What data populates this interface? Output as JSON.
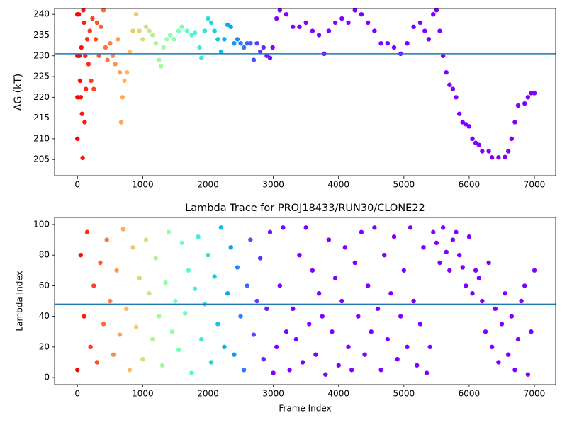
{
  "chart_data": [
    {
      "type": "scatter",
      "ylabel": "ΔG (kT)",
      "colormap": "rainbow",
      "color_range": [
        3000,
        0
      ],
      "xlim": [
        -350,
        7325
      ],
      "ylim": [
        201.1,
        241.4
      ],
      "xticks": [
        0,
        1000,
        2000,
        3000,
        4000,
        5000,
        6000,
        7000
      ],
      "yticks": [
        205,
        210,
        215,
        220,
        225,
        230,
        235,
        240
      ],
      "hline": 230.5,
      "hline_color": "#1f77b4",
      "x": [
        0,
        0,
        0,
        0,
        20,
        30,
        40,
        50,
        60,
        70,
        80,
        90,
        100,
        110,
        120,
        130,
        150,
        170,
        190,
        210,
        230,
        250,
        280,
        300,
        330,
        360,
        400,
        430,
        460,
        500,
        540,
        580,
        620,
        650,
        670,
        690,
        720,
        760,
        800,
        850,
        900,
        950,
        1000,
        1050,
        1100,
        1150,
        1200,
        1250,
        1280,
        1320,
        1370,
        1420,
        1480,
        1550,
        1600,
        1680,
        1750,
        1800,
        1870,
        1900,
        1950,
        2000,
        2050,
        2100,
        2150,
        2200,
        2250,
        2300,
        2350,
        2400,
        2450,
        2500,
        2550,
        2600,
        2650,
        2700,
        2750,
        2800,
        2850,
        2900,
        2950,
        2990,
        3050,
        3100,
        3200,
        3300,
        3400,
        3500,
        3600,
        3700,
        3780,
        3850,
        3950,
        4050,
        4150,
        4250,
        4350,
        4450,
        4550,
        4650,
        4750,
        4850,
        4950,
        5050,
        5150,
        5250,
        5320,
        5380,
        5450,
        5500,
        5550,
        5600,
        5650,
        5700,
        5750,
        5800,
        5850,
        5900,
        5950,
        6000,
        6050,
        6100,
        6150,
        6200,
        6300,
        6350,
        6450,
        6550,
        6600,
        6650,
        6700,
        6750,
        6850,
        6900,
        6950,
        7000
      ],
      "y": [
        240,
        230,
        220,
        210,
        240,
        230,
        224,
        220,
        232,
        216,
        205.4,
        241,
        238,
        214,
        230,
        222,
        234,
        228,
        236,
        224,
        239,
        222,
        234,
        238,
        230,
        237,
        241,
        232,
        229,
        233,
        230,
        228,
        234,
        226,
        214,
        220,
        224,
        226,
        231,
        236,
        240,
        236,
        234,
        237,
        236,
        235,
        233,
        229,
        227.5,
        232,
        234,
        235,
        234,
        236,
        237,
        236,
        235,
        235.5,
        232,
        229.5,
        236,
        239,
        238,
        236,
        234,
        231,
        234,
        237.5,
        237,
        233,
        234,
        233,
        232,
        233,
        233,
        229,
        233,
        231,
        232,
        230,
        229.5,
        232,
        239,
        241,
        240,
        237,
        237,
        238,
        236,
        235,
        230.5,
        236,
        238,
        239,
        238,
        241,
        240,
        238,
        236,
        233,
        233,
        232,
        230.5,
        233,
        237,
        238,
        236,
        234,
        240,
        241,
        236,
        230,
        226,
        223,
        222,
        220,
        216,
        214,
        213.5,
        213,
        210,
        209,
        208.5,
        207,
        207,
        205.5,
        205.5,
        205.6,
        207,
        210,
        214,
        218,
        218.5,
        220,
        221,
        221
      ]
    },
    {
      "type": "scatter",
      "title": "Lambda Trace for PROJ18433/RUN30/CLONE22",
      "xlabel": "Frame Index",
      "ylabel": "Lambda Index",
      "colormap": "rainbow",
      "color_range": [
        3000,
        0
      ],
      "xlim": [
        -350,
        7325
      ],
      "ylim": [
        -4.6,
        104.6
      ],
      "xticks": [
        0,
        1000,
        2000,
        3000,
        4000,
        5000,
        6000,
        7000
      ],
      "yticks": [
        0,
        20,
        40,
        60,
        80,
        100
      ],
      "hline": 48,
      "hline_color": "#1f77b4",
      "x": [
        0,
        50,
        100,
        150,
        200,
        250,
        300,
        350,
        400,
        450,
        500,
        550,
        600,
        650,
        700,
        750,
        800,
        850,
        900,
        950,
        1000,
        1050,
        1100,
        1150,
        1200,
        1250,
        1300,
        1350,
        1400,
        1450,
        1500,
        1550,
        1600,
        1650,
        1700,
        1750,
        1800,
        1850,
        1900,
        1950,
        2000,
        2050,
        2100,
        2150,
        2200,
        2250,
        2300,
        2350,
        2400,
        2450,
        2500,
        2550,
        2600,
        2650,
        2700,
        2750,
        2800,
        2850,
        2900,
        2950,
        3000,
        3050,
        3100,
        3150,
        3200,
        3250,
        3300,
        3350,
        3400,
        3450,
        3500,
        3550,
        3600,
        3650,
        3700,
        3750,
        3800,
        3850,
        3900,
        3950,
        4000,
        4050,
        4100,
        4150,
        4200,
        4250,
        4300,
        4350,
        4400,
        4450,
        4500,
        4550,
        4600,
        4650,
        4700,
        4750,
        4800,
        4850,
        4900,
        4950,
        5000,
        5050,
        5100,
        5150,
        5200,
        5250,
        5300,
        5350,
        5400,
        5450,
        5500,
        5550,
        5600,
        5650,
        5700,
        5750,
        5800,
        5850,
        5900,
        5950,
        6000,
        6050,
        6100,
        6150,
        6200,
        6250,
        6300,
        6350,
        6400,
        6450,
        6500,
        6550,
        6600,
        6650,
        6700,
        6750,
        6800,
        6850,
        6900,
        6950,
        7000
      ],
      "y": [
        5,
        80,
        40,
        95,
        20,
        60,
        10,
        75,
        35,
        90,
        50,
        15,
        70,
        28,
        97,
        45,
        5,
        85,
        33,
        65,
        12,
        90,
        55,
        25,
        78,
        40,
        8,
        62,
        95,
        30,
        50,
        18,
        88,
        42,
        70,
        3,
        58,
        92,
        25,
        48,
        80,
        10,
        66,
        35,
        98,
        20,
        55,
        85,
        15,
        72,
        40,
        5,
        60,
        90,
        28,
        50,
        78,
        12,
        45,
        95,
        3,
        20,
        60,
        98,
        30,
        5,
        45,
        25,
        80,
        10,
        98,
        35,
        70,
        15,
        55,
        40,
        2,
        90,
        30,
        65,
        8,
        50,
        85,
        20,
        5,
        75,
        40,
        95,
        15,
        60,
        30,
        98,
        45,
        5,
        80,
        25,
        55,
        92,
        12,
        40,
        70,
        20,
        98,
        50,
        8,
        35,
        85,
        3,
        20,
        95,
        88,
        75,
        98,
        82,
        70,
        90,
        95,
        80,
        72,
        60,
        92,
        55,
        70,
        65,
        50,
        30,
        75,
        20,
        45,
        10,
        35,
        55,
        15,
        40,
        5,
        25,
        50,
        60,
        2,
        30,
        70
      ]
    }
  ]
}
